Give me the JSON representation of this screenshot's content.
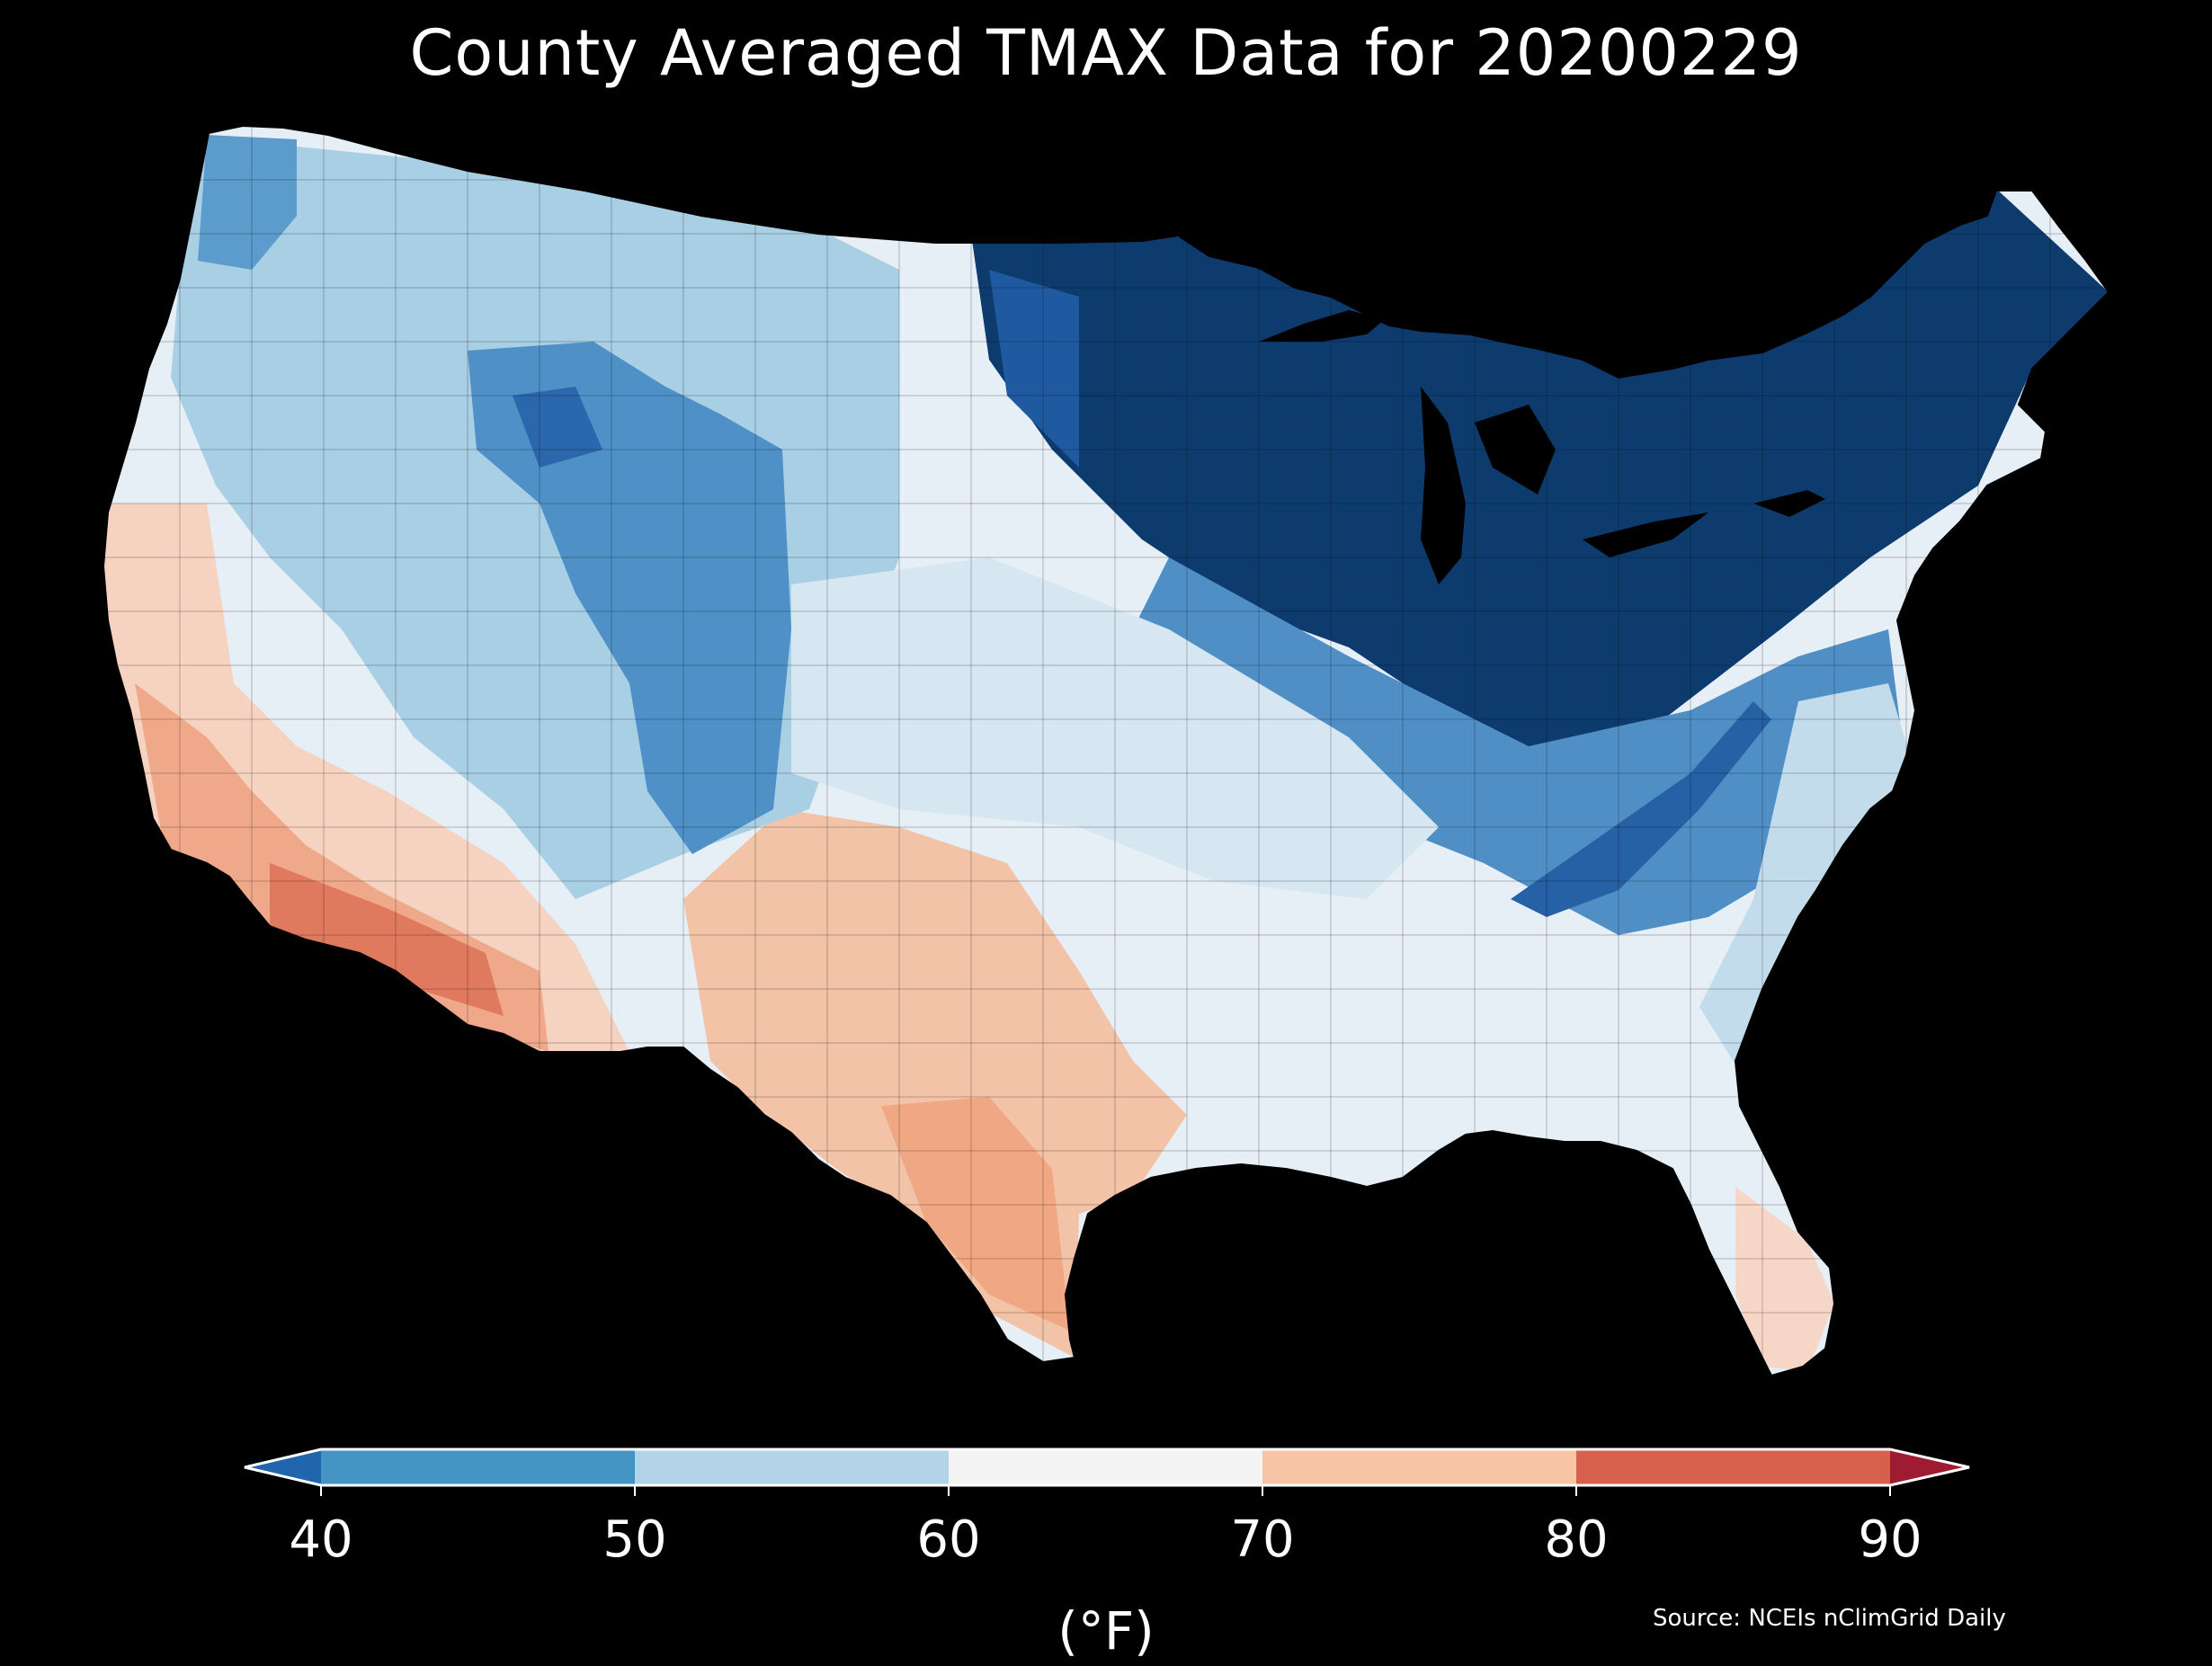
{
  "title": "County Averaged TMAX Data for 20200229",
  "colorbar": {
    "ticks": [
      "40",
      "50",
      "60",
      "70",
      "80",
      "90"
    ],
    "units": "(°F)",
    "bins": [
      {
        "from": null,
        "to": 40,
        "color": "#2166ac"
      },
      {
        "from": 40,
        "to": 50,
        "color": "#4393c3"
      },
      {
        "from": 50,
        "to": 60,
        "color": "#b3d4e8"
      },
      {
        "from": 60,
        "to": 70,
        "color": "#f4f4f4"
      },
      {
        "from": 70,
        "to": 80,
        "color": "#f7c4a6"
      },
      {
        "from": 80,
        "to": 90,
        "color": "#d6604d"
      },
      {
        "from": 90,
        "to": null,
        "color": "#9e1b31"
      }
    ]
  },
  "source": "Source: NCEIs nClimGrid Daily",
  "colors": {
    "background": "#000000",
    "very_cold": "#0d3b6e",
    "cold": "#2f74b5",
    "cool": "#9ec8e1",
    "mild": "#e7f0f6",
    "warm": "#f5c9b0",
    "hot": "#e07a5f"
  }
}
